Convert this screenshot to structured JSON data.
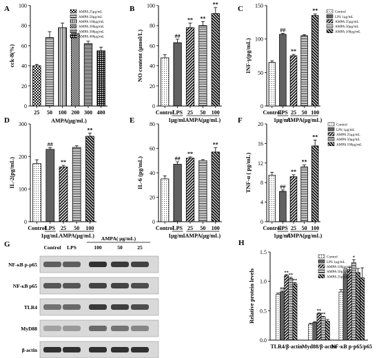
{
  "chart_data": [
    {
      "panel": "A",
      "type": "bar",
      "ylabel": "cck-8(%)",
      "xlabel": "AMPA(μg/mL)",
      "ylim": [
        0,
        100
      ],
      "yticks": [
        0,
        20,
        40,
        60,
        80,
        100
      ],
      "categories": [
        "25",
        "50",
        "100",
        "200",
        "300",
        "400"
      ],
      "values": [
        40,
        68,
        78,
        72,
        62,
        55
      ],
      "errors": [
        1.5,
        6,
        4.5,
        3,
        2.5,
        3.5
      ],
      "sig": [
        "",
        "",
        "",
        "",
        "",
        ""
      ],
      "patterns": [
        "p-check",
        "p-hline",
        "p-vline",
        "p-check2",
        "p-hline2",
        "p-grid"
      ],
      "legend": [
        "AMPA 25μg/mL",
        "AMPA 50μg/mL",
        "AMPA 100μg/mL",
        "AMPA 200μg/mL",
        "AMPA 300μg/mL",
        "AMPA 400μg/mL"
      ]
    },
    {
      "panel": "B",
      "type": "bar",
      "ylabel": "NO content (μmol/L)",
      "ylim": [
        0,
        100
      ],
      "yticks": [
        0,
        20,
        40,
        60,
        80,
        100
      ],
      "categories": [
        "Control",
        "LPS",
        "25",
        "50",
        "100"
      ],
      "values": [
        48,
        63,
        78,
        80,
        92
      ],
      "errors": [
        3,
        3.5,
        4.5,
        4,
        6
      ],
      "sig": [
        "",
        "##",
        "**",
        "**",
        "**"
      ],
      "patterns": [
        "p-dot",
        "p-dots2",
        "p-diag",
        "p-hline",
        "p-diag2"
      ],
      "under_lps": "1μg/mL",
      "group": "AMPA(μg/mL)"
    },
    {
      "panel": "C",
      "type": "bar",
      "ylabel": "INF-γ(pg/mL)",
      "ylim": [
        0,
        150
      ],
      "yticks": [
        0,
        50,
        100,
        150
      ],
      "categories": [
        "Control",
        "LPS",
        "25",
        "50",
        "100"
      ],
      "values": [
        65,
        107,
        75,
        105,
        135
      ],
      "errors": [
        2.5,
        1.5,
        2,
        1.5,
        2.5
      ],
      "sig": [
        "",
        "##",
        "**",
        "",
        "**"
      ],
      "patterns": [
        "p-dot",
        "p-dots2",
        "p-diag",
        "p-hline",
        "p-diag2"
      ],
      "legend": [
        "Control",
        "LPS 1μg/mL",
        "AMPA 25μg/mL",
        "AMPA 50μg/mL",
        "AMPA 100μg/mL"
      ],
      "under_lps": "1μg/mL",
      "group": "AMPA(μg/mL)"
    },
    {
      "panel": "D",
      "type": "bar",
      "ylabel": "IL-2(pg/mL)",
      "ylim": [
        0,
        300
      ],
      "yticks": [
        0,
        100,
        200,
        300
      ],
      "categories": [
        "Control",
        "LPS",
        "25",
        "50",
        "100"
      ],
      "values": [
        178,
        222,
        168,
        228,
        262
      ],
      "errors": [
        12,
        5,
        5,
        5,
        10
      ],
      "sig": [
        "",
        "##",
        "**",
        "",
        "**"
      ],
      "patterns": [
        "p-dot",
        "p-dots2",
        "p-diag",
        "p-hline",
        "p-diag2"
      ],
      "under_lps": "1μg/mL",
      "group": "AMPA(μg/mL)"
    },
    {
      "panel": "E",
      "type": "bar",
      "ylabel": "IL-6 (pg/mL)",
      "ylim": [
        0,
        80
      ],
      "yticks": [
        0,
        20,
        40,
        60,
        80
      ],
      "categories": [
        "Control",
        "LPS",
        "25",
        "50",
        "100"
      ],
      "values": [
        35,
        47,
        52,
        50,
        57
      ],
      "errors": [
        2.5,
        2,
        1,
        0.8,
        3.5
      ],
      "sig": [
        "",
        "##",
        "**",
        "",
        "**"
      ],
      "patterns": [
        "p-dot",
        "p-dots2",
        "p-diag",
        "p-hline",
        "p-diag2"
      ],
      "under_lps": "1μg/mL",
      "group": "AMPA(μg/mL)"
    },
    {
      "panel": "F",
      "type": "bar",
      "ylabel": "TNF-α ( pg/mL)",
      "ylim": [
        0,
        20
      ],
      "yticks": [
        0,
        4,
        8,
        12,
        16,
        20
      ],
      "categories": [
        "Control",
        "LPS",
        "25",
        "50",
        "100"
      ],
      "values": [
        9.5,
        6.2,
        9.2,
        11.2,
        15.5
      ],
      "errors": [
        0.6,
        0.3,
        0.4,
        0.4,
        1.2
      ],
      "sig": [
        "",
        "##",
        "**",
        "**",
        "**"
      ],
      "patterns": [
        "p-dot",
        "p-dots2",
        "p-diag",
        "p-hline",
        "p-diag2"
      ],
      "legend": [
        "Control",
        "LPS 1μg/mL",
        "AMPA 25μg/mL",
        "AMPA 50μg/mL",
        "AMPA 100μg/mL"
      ],
      "under_lps": "1μg/mL",
      "group": "AMPA(μg/mL)"
    },
    {
      "panel": "H",
      "type": "bar",
      "ylabel": "Relative protein levels",
      "ylim": [
        0,
        1.5
      ],
      "yticks": [
        0,
        0.5,
        1.0,
        1.5
      ],
      "yticklabels": [
        "0.0",
        "0.5",
        "1.0",
        "1.5"
      ],
      "categories": [
        "TLR4/β-actin",
        "Myd88/β-actin",
        "NF-κB p-p65/p65"
      ],
      "series": [
        {
          "name": "Control",
          "values": [
            0.78,
            0.27,
            0.82
          ],
          "errors": [
            0.02,
            0.015,
            0.04
          ],
          "sig": [
            "",
            "",
            ""
          ],
          "pattern": "p-dot"
        },
        {
          "name": "LPS 1μg/mL",
          "values": [
            0.82,
            0.3,
            1.13
          ],
          "errors": [
            0.015,
            0.015,
            0.03
          ],
          "sig": [
            "##",
            "",
            "##"
          ],
          "pattern": "p-dots2"
        },
        {
          "name": "AMPA 100μg/mL",
          "values": [
            1.1,
            0.45,
            1.2
          ],
          "errors": [
            0.015,
            0.015,
            0.04
          ],
          "sig": [
            "**",
            "**",
            ""
          ],
          "pattern": "p-diag"
        },
        {
          "name": "AMPA 50μg/mL",
          "values": [
            1.05,
            0.39,
            1.32
          ],
          "errors": [
            0.02,
            0.015,
            0.05
          ],
          "sig": [
            "**",
            "**",
            "*"
          ],
          "pattern": "p-hline"
        },
        {
          "name": "AMPA 25μg/mL",
          "values": [
            0.96,
            0.32,
            1.15
          ],
          "errors": [
            0.02,
            0.03,
            0.07
          ],
          "sig": [
            "**",
            "",
            ""
          ],
          "pattern": "p-diag2"
        }
      ],
      "extra_bar": {
        "category": 2,
        "value": 1.06,
        "error": 0.17
      }
    }
  ],
  "western_blot": {
    "panel": "G",
    "lanes": [
      "Control",
      "LPS",
      "100",
      "50",
      "25"
    ],
    "group": "AMPA( μg/mL)",
    "rows": [
      {
        "label": "NF-κB p-p65",
        "intensity": [
          0.55,
          0.55,
          0.8,
          0.75,
          0.7
        ]
      },
      {
        "label": "NF-κB p65",
        "intensity": [
          0.6,
          0.6,
          0.7,
          0.7,
          0.65
        ]
      },
      {
        "label": "TLR4",
        "intensity": [
          0.45,
          0.5,
          0.75,
          0.72,
          0.65
        ]
      },
      {
        "label": "MyD88",
        "intensity": [
          0.2,
          0.25,
          0.5,
          0.45,
          0.35
        ]
      },
      {
        "label": "β-actin",
        "intensity": [
          0.8,
          0.8,
          0.8,
          0.8,
          0.8
        ]
      }
    ]
  },
  "panel_labels": [
    "A",
    "B",
    "C",
    "D",
    "E",
    "F",
    "G",
    "H"
  ]
}
